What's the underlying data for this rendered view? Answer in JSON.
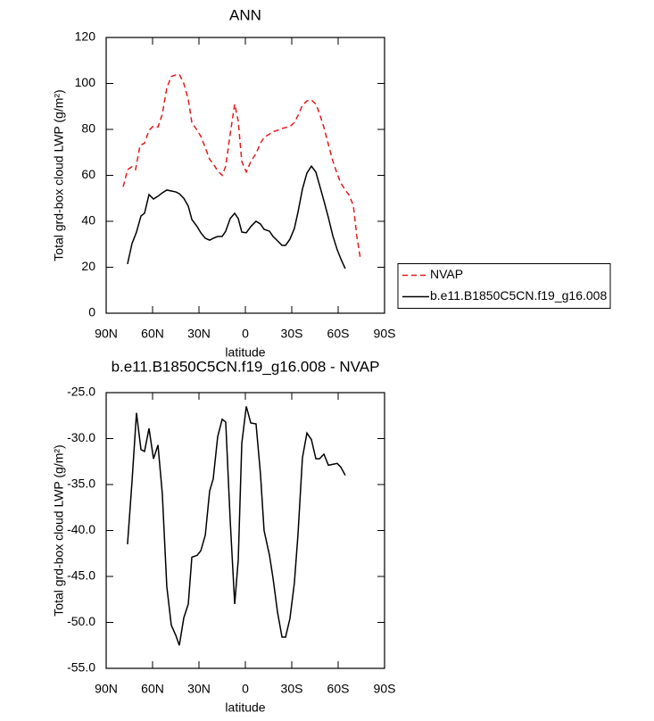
{
  "chart_data": [
    {
      "type": "line",
      "title": "ANN",
      "xlabel": "latitude",
      "ylabel": "Total grd-box cloud LWP (g/m²)",
      "xlim": [
        90,
        -90
      ],
      "xticks": [
        {
          "value": 90,
          "label": "90N"
        },
        {
          "value": 60,
          "label": "60N"
        },
        {
          "value": 30,
          "label": "30N"
        },
        0,
        {
          "value": -30,
          "label": "30S"
        },
        {
          "value": -60,
          "label": "60S"
        },
        {
          "value": -90,
          "label": "90S"
        }
      ],
      "ylim": [
        0,
        120
      ],
      "yticks": [
        0,
        20,
        40,
        60,
        80,
        100,
        120
      ],
      "legend": "right",
      "series": [
        {
          "name": "NVAP",
          "color": "#e31a1c",
          "line_style": "dashed",
          "x": [
            79.0,
            76.2,
            73.3,
            71.0,
            68.1,
            65.2,
            62.3,
            59.4,
            56.5,
            53.7,
            50.8,
            47.9,
            45.0,
            42.7,
            39.8,
            36.9,
            34.6,
            31.2,
            28.8,
            25.9,
            23.1,
            20.8,
            17.9,
            15.0,
            12.7,
            9.8,
            6.9,
            4.6,
            2.3,
            -0.6,
            -3.5,
            -6.9,
            -9.8,
            -12.1,
            -15.6,
            -17.9,
            -20.8,
            -23.7,
            -26.0,
            -28.8,
            -31.7,
            -34.0,
            -36.9,
            -39.8,
            -42.7,
            -45.6,
            -47.9,
            -50.8,
            -53.7,
            -56.5,
            -59.4,
            -61.7,
            -64.6,
            -66.9,
            -69.8,
            -72.1,
            -74.4
          ],
          "values": [
            55,
            62.5,
            63.7,
            62.5,
            73,
            74,
            79.6,
            81.5,
            81,
            86.6,
            98,
            103,
            103.7,
            104,
            100,
            93,
            83,
            79.6,
            77,
            72,
            67,
            65,
            62,
            60,
            64,
            78,
            91,
            83.5,
            66,
            61.5,
            66,
            69.5,
            74,
            76.5,
            78,
            79,
            79.6,
            80.4,
            80.8,
            81.2,
            83,
            86,
            90.5,
            92.4,
            92.8,
            91,
            87,
            80.8,
            73.4,
            66.4,
            60.6,
            56.7,
            53.6,
            51.6,
            47,
            33.4,
            23.7
          ]
        },
        {
          "name": "b.e11.B1850C5CN.f19_g16.008",
          "color": "#000000",
          "line_style": "solid",
          "x": [
            76.2,
            73.3,
            70.4,
            67.5,
            65.2,
            62.3,
            59.4,
            56.5,
            53.7,
            50.8,
            47.9,
            45.0,
            42.7,
            39.8,
            36.9,
            34.6,
            31.2,
            28.8,
            25.9,
            23.1,
            20.8,
            17.9,
            15.0,
            12.7,
            9.8,
            6.9,
            4.6,
            2.3,
            -0.6,
            -3.5,
            -6.9,
            -9.8,
            -12.1,
            -15.6,
            -17.9,
            -20.8,
            -23.7,
            -26.0,
            -28.8,
            -31.7,
            -34.0,
            -36.9,
            -39.8,
            -42.7,
            -45.6,
            -47.9,
            -50.8,
            -53.7,
            -56.5,
            -59.4,
            -61.7,
            -64.6
          ],
          "values": [
            21.4,
            30.3,
            35.3,
            42.3,
            43.5,
            51.6,
            49.7,
            50.9,
            52.4,
            53.6,
            53.2,
            52.8,
            52,
            50,
            46.6,
            40.8,
            37.7,
            35,
            32.6,
            31.8,
            32.6,
            33.4,
            33.4,
            35.7,
            41.2,
            43.5,
            41.2,
            35.3,
            35,
            37.7,
            40,
            38.8,
            36.5,
            35.7,
            33.4,
            31.5,
            29.5,
            29.5,
            32.2,
            36.9,
            43.9,
            54,
            61,
            64,
            61.4,
            55.9,
            48.9,
            41.6,
            33.8,
            27.6,
            23.7,
            19.4
          ]
        }
      ]
    },
    {
      "type": "line",
      "title": "b.e11.B1850C5CN.f19_g16.008 - NVAP",
      "xlabel": "latitude",
      "ylabel": "Total grd-box cloud LWP (g/m²)",
      "xlim": [
        90,
        -90
      ],
      "xticks": [
        {
          "value": 90,
          "label": "90N"
        },
        {
          "value": 60,
          "label": "60N"
        },
        {
          "value": 30,
          "label": "30N"
        },
        0,
        {
          "value": -30,
          "label": "30S"
        },
        {
          "value": -60,
          "label": "60S"
        },
        {
          "value": -90,
          "label": "90S"
        }
      ],
      "ylim": [
        -55,
        -25
      ],
      "yticks": [
        {
          "value": -55,
          "label": "-55.0"
        },
        {
          "value": -50,
          "label": "-50.0"
        },
        {
          "value": -45,
          "label": "-45.0"
        },
        {
          "value": -40,
          "label": "-40.0"
        },
        {
          "value": -35,
          "label": "-35.0"
        },
        {
          "value": -30,
          "label": "-30.0"
        },
        {
          "value": -25,
          "label": "-25.0"
        }
      ],
      "series": [
        {
          "color": "#000000",
          "line_style": "solid",
          "x": [
            76.2,
            73.3,
            70.4,
            67.5,
            65.2,
            62.3,
            59.4,
            56.5,
            53.7,
            50.8,
            47.9,
            45.0,
            42.7,
            39.8,
            36.9,
            34.6,
            31.2,
            28.8,
            25.9,
            23.1,
            20.8,
            17.9,
            15.0,
            12.7,
            9.8,
            6.9,
            4.6,
            2.3,
            -0.6,
            -3.5,
            -6.9,
            -9.8,
            -12.1,
            -15.6,
            -17.9,
            -20.8,
            -23.7,
            -26.0,
            -28.8,
            -31.7,
            -34.0,
            -36.9,
            -39.8,
            -42.7,
            -45.6,
            -47.9,
            -50.8,
            -53.7,
            -56.5,
            -59.4,
            -61.7,
            -64.6
          ],
          "values": [
            -41.5,
            -34.7,
            -27.2,
            -31.2,
            -31.4,
            -28.9,
            -32.2,
            -30.7,
            -36,
            -46.1,
            -50.3,
            -51.4,
            -52.5,
            -49.5,
            -48,
            -42.9,
            -42.7,
            -42.2,
            -40.5,
            -35.7,
            -34.4,
            -29.8,
            -27.9,
            -28.2,
            -38.9,
            -48,
            -43.2,
            -30.5,
            -26.5,
            -28.3,
            -28.4,
            -33.9,
            -40,
            -42.7,
            -45.2,
            -48.9,
            -51.6,
            -51.6,
            -49.6,
            -45.7,
            -40.5,
            -32.1,
            -29.4,
            -30.1,
            -32.2,
            -32.2,
            -31.7,
            -32.9,
            -32.8,
            -32.7,
            -33.1,
            -34
          ]
        }
      ]
    }
  ]
}
